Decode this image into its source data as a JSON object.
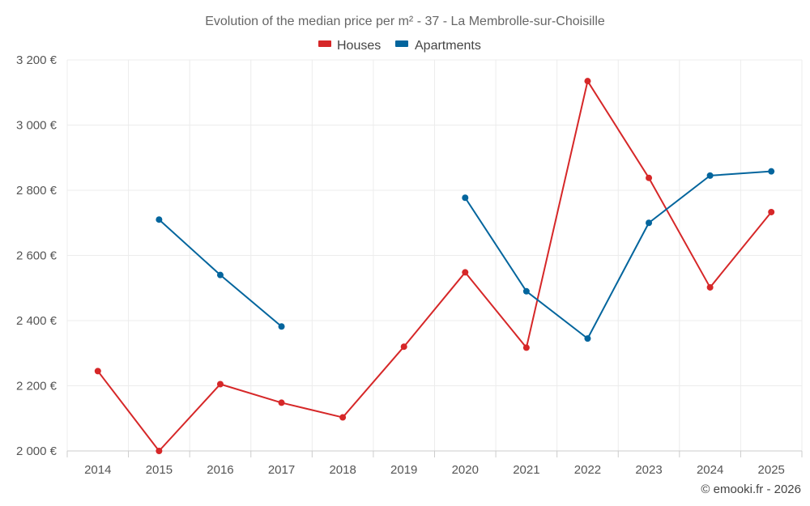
{
  "chart_data": {
    "type": "line",
    "title": "Evolution of the median price per m² - 37 - La Membrolle-sur-Choisille",
    "credit": "© emooki.fr - 2026",
    "categories": [
      "2014",
      "2015",
      "2016",
      "2017",
      "2018",
      "2019",
      "2020",
      "2021",
      "2022",
      "2023",
      "2024",
      "2025"
    ],
    "ylim": [
      2000,
      3200
    ],
    "yticks": [
      2000,
      2200,
      2400,
      2600,
      2800,
      3000,
      3200
    ],
    "ytick_labels": [
      "2 000 €",
      "2 200 €",
      "2 400 €",
      "2 600 €",
      "2 800 €",
      "3 000 €",
      "3 200 €"
    ],
    "grid": true,
    "legend_position": "top-center",
    "series": [
      {
        "name": "Houses",
        "color": "#d62728",
        "values": [
          2245,
          2000,
          2205,
          2148,
          2103,
          2320,
          2548,
          2317,
          3135,
          2838,
          2502,
          2733
        ]
      },
      {
        "name": "Apartments",
        "color": "#03659d",
        "values": [
          null,
          2710,
          2540,
          2382,
          null,
          null,
          2777,
          2490,
          2345,
          2700,
          2845,
          2858
        ]
      }
    ]
  }
}
